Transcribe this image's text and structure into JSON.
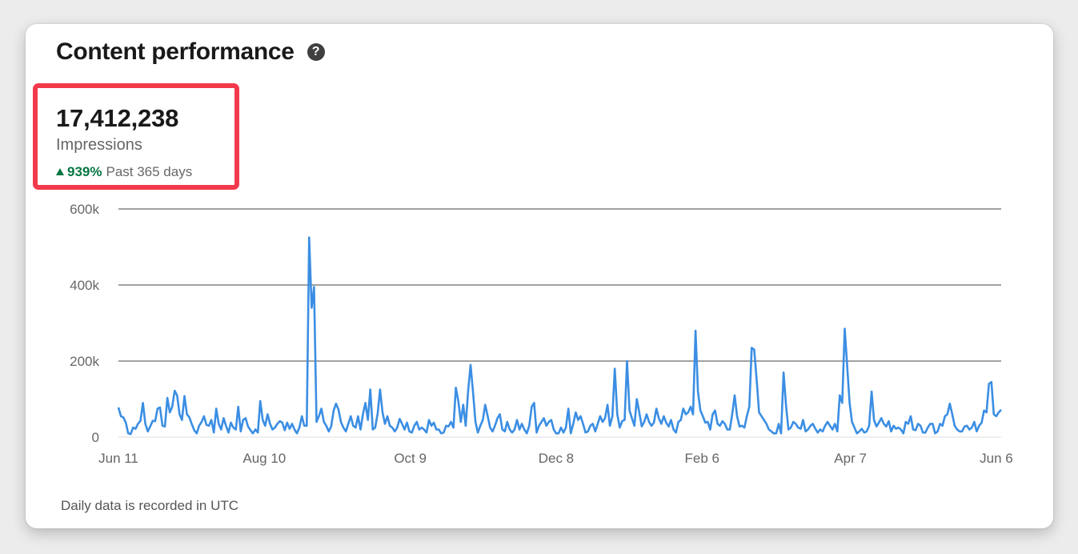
{
  "card": {
    "title": "Content performance",
    "help_icon": "question-circle-icon"
  },
  "summary": {
    "value": "17,412,238",
    "label": "Impressions",
    "trend_icon": "triangle-up-icon",
    "trend_percent": "939%",
    "trend_period": "Past 365 days"
  },
  "footer": {
    "note": "Daily data is recorded in UTC"
  },
  "colors": {
    "line": "#3b8ee3",
    "highlight_box": "#f23a4c",
    "trend_up": "#057642"
  },
  "chart_data": {
    "type": "line",
    "title": "",
    "xlabel": "",
    "ylabel": "",
    "ylim": [
      0,
      600000
    ],
    "y_ticks": [
      0,
      200000,
      400000,
      600000
    ],
    "y_tick_labels": [
      "0",
      "200k",
      "400k",
      "600k"
    ],
    "x_range": [
      "2023-06-11",
      "2024-06-08"
    ],
    "x_ticks": [
      {
        "date": "2023-06-11",
        "label": "Jun 11"
      },
      {
        "date": "2023-08-10",
        "label": "Aug 10"
      },
      {
        "date": "2023-10-09",
        "label": "Oct 9"
      },
      {
        "date": "2023-12-08",
        "label": "Dec 8"
      },
      {
        "date": "2024-02-06",
        "label": "Feb 6"
      },
      {
        "date": "2024-04-07",
        "label": "Apr 7"
      },
      {
        "date": "2024-06-06",
        "label": "Jun 6"
      }
    ],
    "grid": true,
    "series": [
      {
        "values": [
          78000,
          55000,
          52000,
          38000,
          10000,
          8000,
          25000,
          22000,
          35000,
          43000,
          90000,
          35000,
          15000,
          28000,
          43000,
          42000,
          75000,
          78000,
          30000,
          28000,
          103000,
          65000,
          80000,
          122000,
          110000,
          60000,
          45000,
          108000,
          60000,
          52000,
          34000,
          18000,
          10000,
          30000,
          40000,
          55000,
          32000,
          30000,
          45000,
          12000,
          75000,
          35000,
          20000,
          50000,
          30000,
          12000,
          38000,
          25000,
          20000,
          80000,
          15000,
          45000,
          50000,
          28000,
          18000,
          10000,
          20000,
          12000,
          95000,
          45000,
          30000,
          60000,
          35000,
          20000,
          25000,
          35000,
          42000,
          38000,
          18000,
          38000,
          22000,
          35000,
          20000,
          10000,
          25000,
          55000,
          30000,
          30000,
          525000,
          340000,
          395000,
          40000,
          55000,
          75000,
          40000,
          30000,
          15000,
          28000,
          70000,
          88000,
          72000,
          40000,
          25000,
          15000,
          35000,
          55000,
          30000,
          25000,
          55000,
          20000,
          60000,
          90000,
          45000,
          125000,
          20000,
          25000,
          62000,
          125000,
          65000,
          35000,
          55000,
          30000,
          25000,
          15000,
          25000,
          48000,
          35000,
          20000,
          38000,
          15000,
          12000,
          30000,
          40000,
          20000,
          25000,
          20000,
          12000,
          45000,
          30000,
          38000,
          20000,
          20000,
          10000,
          12000,
          30000,
          28000,
          40000,
          25000,
          130000,
          95000,
          40000,
          85000,
          30000,
          120000,
          190000,
          120000,
          40000,
          12000,
          30000,
          45000,
          85000,
          55000,
          25000,
          15000,
          30000,
          50000,
          60000,
          20000,
          15000,
          40000,
          20000,
          12000,
          20000,
          45000,
          20000,
          35000,
          20000,
          10000,
          30000,
          80000,
          90000,
          12000,
          30000,
          40000,
          50000,
          30000,
          40000,
          45000,
          20000,
          10000,
          10000,
          25000,
          12000,
          25000,
          75000,
          10000,
          35000,
          65000,
          45000,
          55000,
          35000,
          12000,
          15000,
          30000,
          35000,
          15000,
          35000,
          55000,
          40000,
          50000,
          85000,
          30000,
          55000,
          180000,
          60000,
          25000,
          42000,
          45000,
          200000,
          70000,
          50000,
          30000,
          100000,
          65000,
          28000,
          40000,
          60000,
          40000,
          30000,
          38000,
          75000,
          50000,
          35000,
          55000,
          38000,
          28000,
          45000,
          20000,
          12000,
          40000,
          45000,
          75000,
          60000,
          65000,
          80000,
          60000,
          280000,
          120000,
          70000,
          55000,
          38000,
          40000,
          20000,
          60000,
          70000,
          35000,
          30000,
          42000,
          35000,
          20000,
          20000,
          60000,
          110000,
          55000,
          28000,
          30000,
          25000,
          55000,
          80000,
          235000,
          230000,
          150000,
          65000,
          55000,
          45000,
          35000,
          20000,
          15000,
          10000,
          10000,
          35000,
          10000,
          170000,
          85000,
          20000,
          25000,
          40000,
          35000,
          25000,
          22000,
          45000,
          15000,
          20000,
          30000,
          35000,
          22000,
          12000,
          20000,
          15000,
          30000,
          40000,
          30000,
          20000,
          35000,
          15000,
          110000,
          90000,
          285000,
          190000,
          90000,
          40000,
          25000,
          10000,
          15000,
          22000,
          12000,
          15000,
          30000,
          120000,
          45000,
          28000,
          38000,
          50000,
          35000,
          28000,
          42000,
          15000,
          30000,
          22000,
          25000,
          20000,
          10000,
          40000,
          35000,
          55000,
          20000,
          18000,
          35000,
          30000,
          12000,
          12000,
          25000,
          35000,
          35000,
          10000,
          15000,
          35000,
          30000,
          55000,
          60000,
          88000,
          60000,
          30000,
          20000,
          15000,
          15000,
          28000,
          30000,
          20000,
          25000,
          40000,
          15000,
          30000,
          38000,
          70000,
          65000,
          140000,
          145000,
          60000,
          55000,
          65000,
          72000
        ]
      }
    ]
  }
}
